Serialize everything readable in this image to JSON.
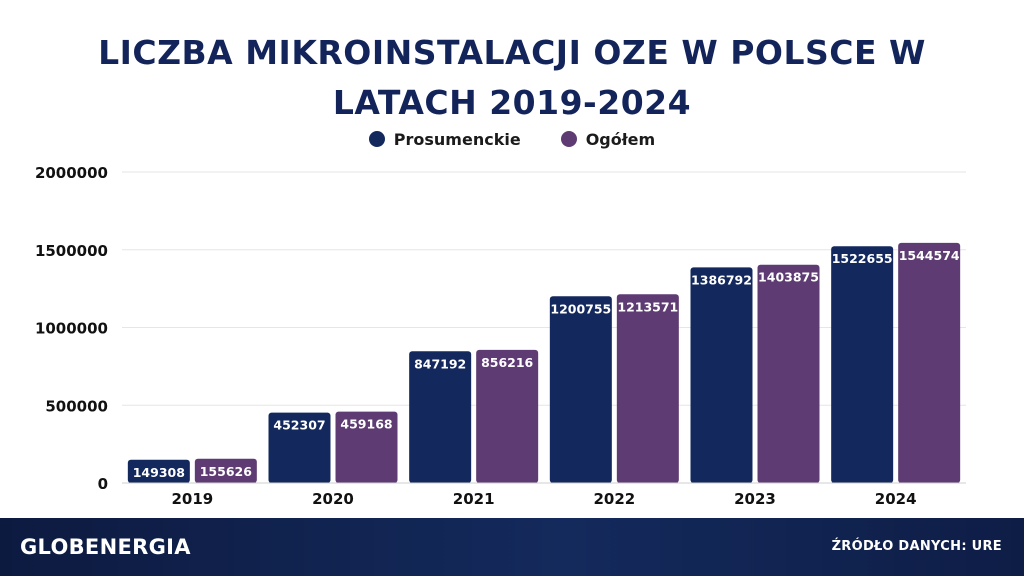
{
  "chart_data": {
    "type": "bar",
    "title_lines": [
      "LICZBA MIKROINSTALACJI OZE W POLSCE W",
      "LATACH 2019-2024"
    ],
    "categories": [
      "2019",
      "2020",
      "2021",
      "2022",
      "2023",
      "2024"
    ],
    "series": [
      {
        "name": "Prosumenckie",
        "color": "#13295e",
        "values": [
          149308,
          452307,
          847192,
          1200755,
          1386792,
          1522655
        ]
      },
      {
        "name": "Ogółem",
        "color": "#5e3c73",
        "values": [
          155626,
          459168,
          856216,
          1213571,
          1403875,
          1544574
        ]
      }
    ],
    "ylim": [
      0,
      2000000
    ],
    "yticks": [
      "0",
      "500000",
      "1000000",
      "1500000",
      "2000000"
    ],
    "grid": true,
    "legend_position": "top-center"
  },
  "footer": {
    "logo": "GLOBENERGIA",
    "source": "ŹRÓDŁO DANYCH: URE"
  }
}
